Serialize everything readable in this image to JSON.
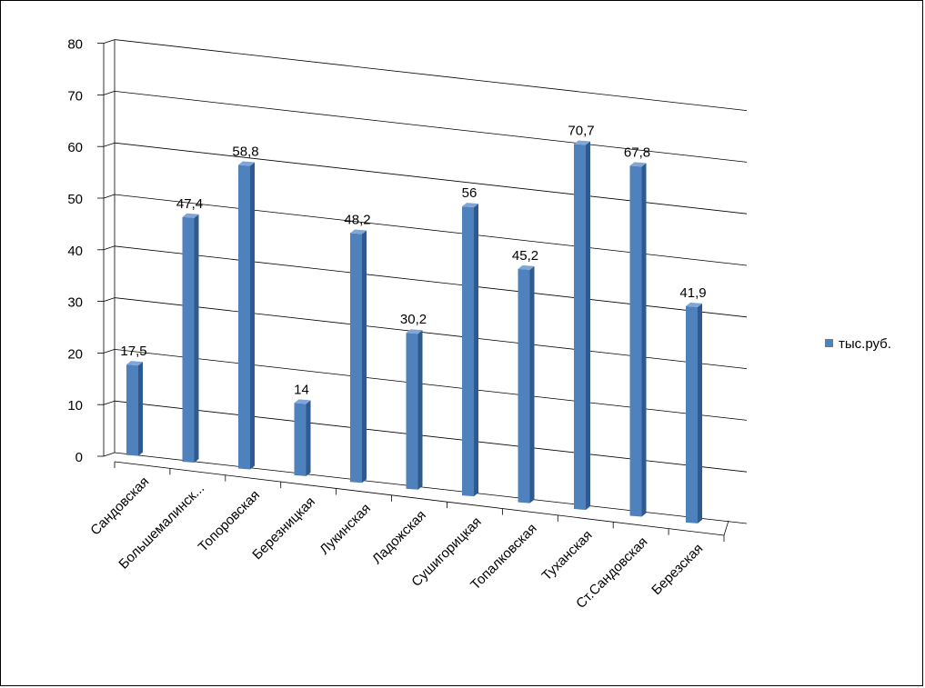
{
  "chart_data": {
    "type": "bar",
    "style": "3d-clustered-column",
    "categories": [
      "Сандовская",
      "Большемалинск...",
      "Топоровская",
      "Березницкая",
      "Лукинская",
      "Ладожская",
      "Сушигорицкая",
      "Топалковская",
      "Туханская",
      "Ст.Сандовская",
      "Березская"
    ],
    "series": [
      {
        "name": "тыс.руб.",
        "values": [
          17.5,
          47.4,
          58.8,
          14,
          48.2,
          30.2,
          56,
          45.2,
          70.7,
          67.8,
          41.9
        ],
        "labels": [
          "17,5",
          "47,4",
          "58,8",
          "14",
          "48,2",
          "30,2",
          "56",
          "45,2",
          "70,7",
          "67,8",
          "41,9"
        ],
        "color": "#4F81BD"
      }
    ],
    "ylim": [
      0,
      80
    ],
    "yticks": [
      0,
      10,
      20,
      30,
      40,
      50,
      60,
      70,
      80
    ],
    "grid": true,
    "legend": "right"
  }
}
